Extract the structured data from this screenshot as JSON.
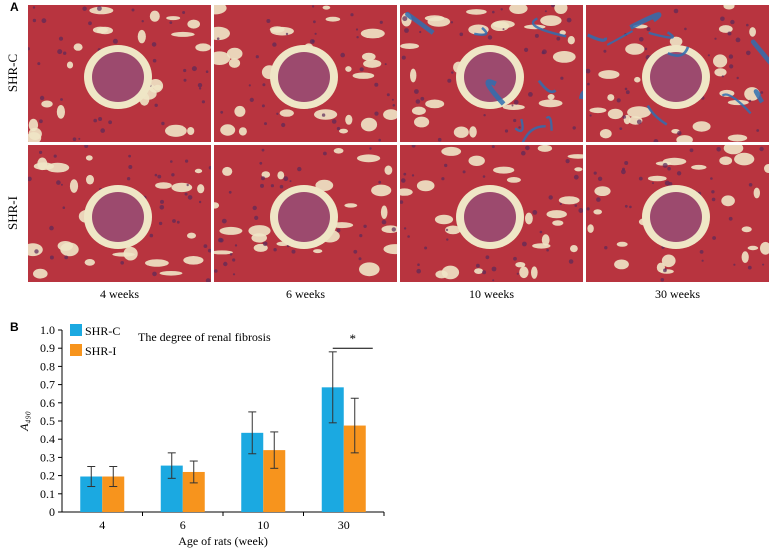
{
  "panel_a": {
    "letter": "A",
    "row_labels": [
      "SHR-C",
      "SHR-I"
    ],
    "column_labels": [
      "4 weeks",
      "6 weeks",
      "10 weeks",
      "30 weeks"
    ]
  },
  "panel_b": {
    "letter": "B"
  },
  "chart_data": {
    "type": "bar",
    "title": "The degree of renal fibrosis",
    "xlabel": "Age of rats (week)",
    "ylabel": "A₄₉₀",
    "categories": [
      "4",
      "6",
      "10",
      "30"
    ],
    "ylim": [
      0,
      1.0
    ],
    "yticks": [
      "0",
      "0.1",
      "0.2",
      "0.3",
      "0.4",
      "0.5",
      "0.6",
      "0.7",
      "0.8",
      "0.9",
      "1.0"
    ],
    "legend_position": "top-left",
    "series": [
      {
        "name": "SHR-C",
        "color": "#1ba9e1",
        "values": [
          0.195,
          0.255,
          0.435,
          0.685
        ],
        "errors": [
          0.055,
          0.07,
          0.115,
          0.195
        ]
      },
      {
        "name": "SHR-I",
        "color": "#f7941d",
        "values": [
          0.195,
          0.22,
          0.34,
          0.475
        ],
        "errors": [
          0.055,
          0.06,
          0.1,
          0.15
        ]
      }
    ],
    "annotations": [
      {
        "category": "30",
        "text": "*"
      }
    ]
  },
  "colors": {
    "tissue": "#b8343f",
    "lumen": "#efe6c6",
    "fibrosis": "#2f6fb0"
  }
}
